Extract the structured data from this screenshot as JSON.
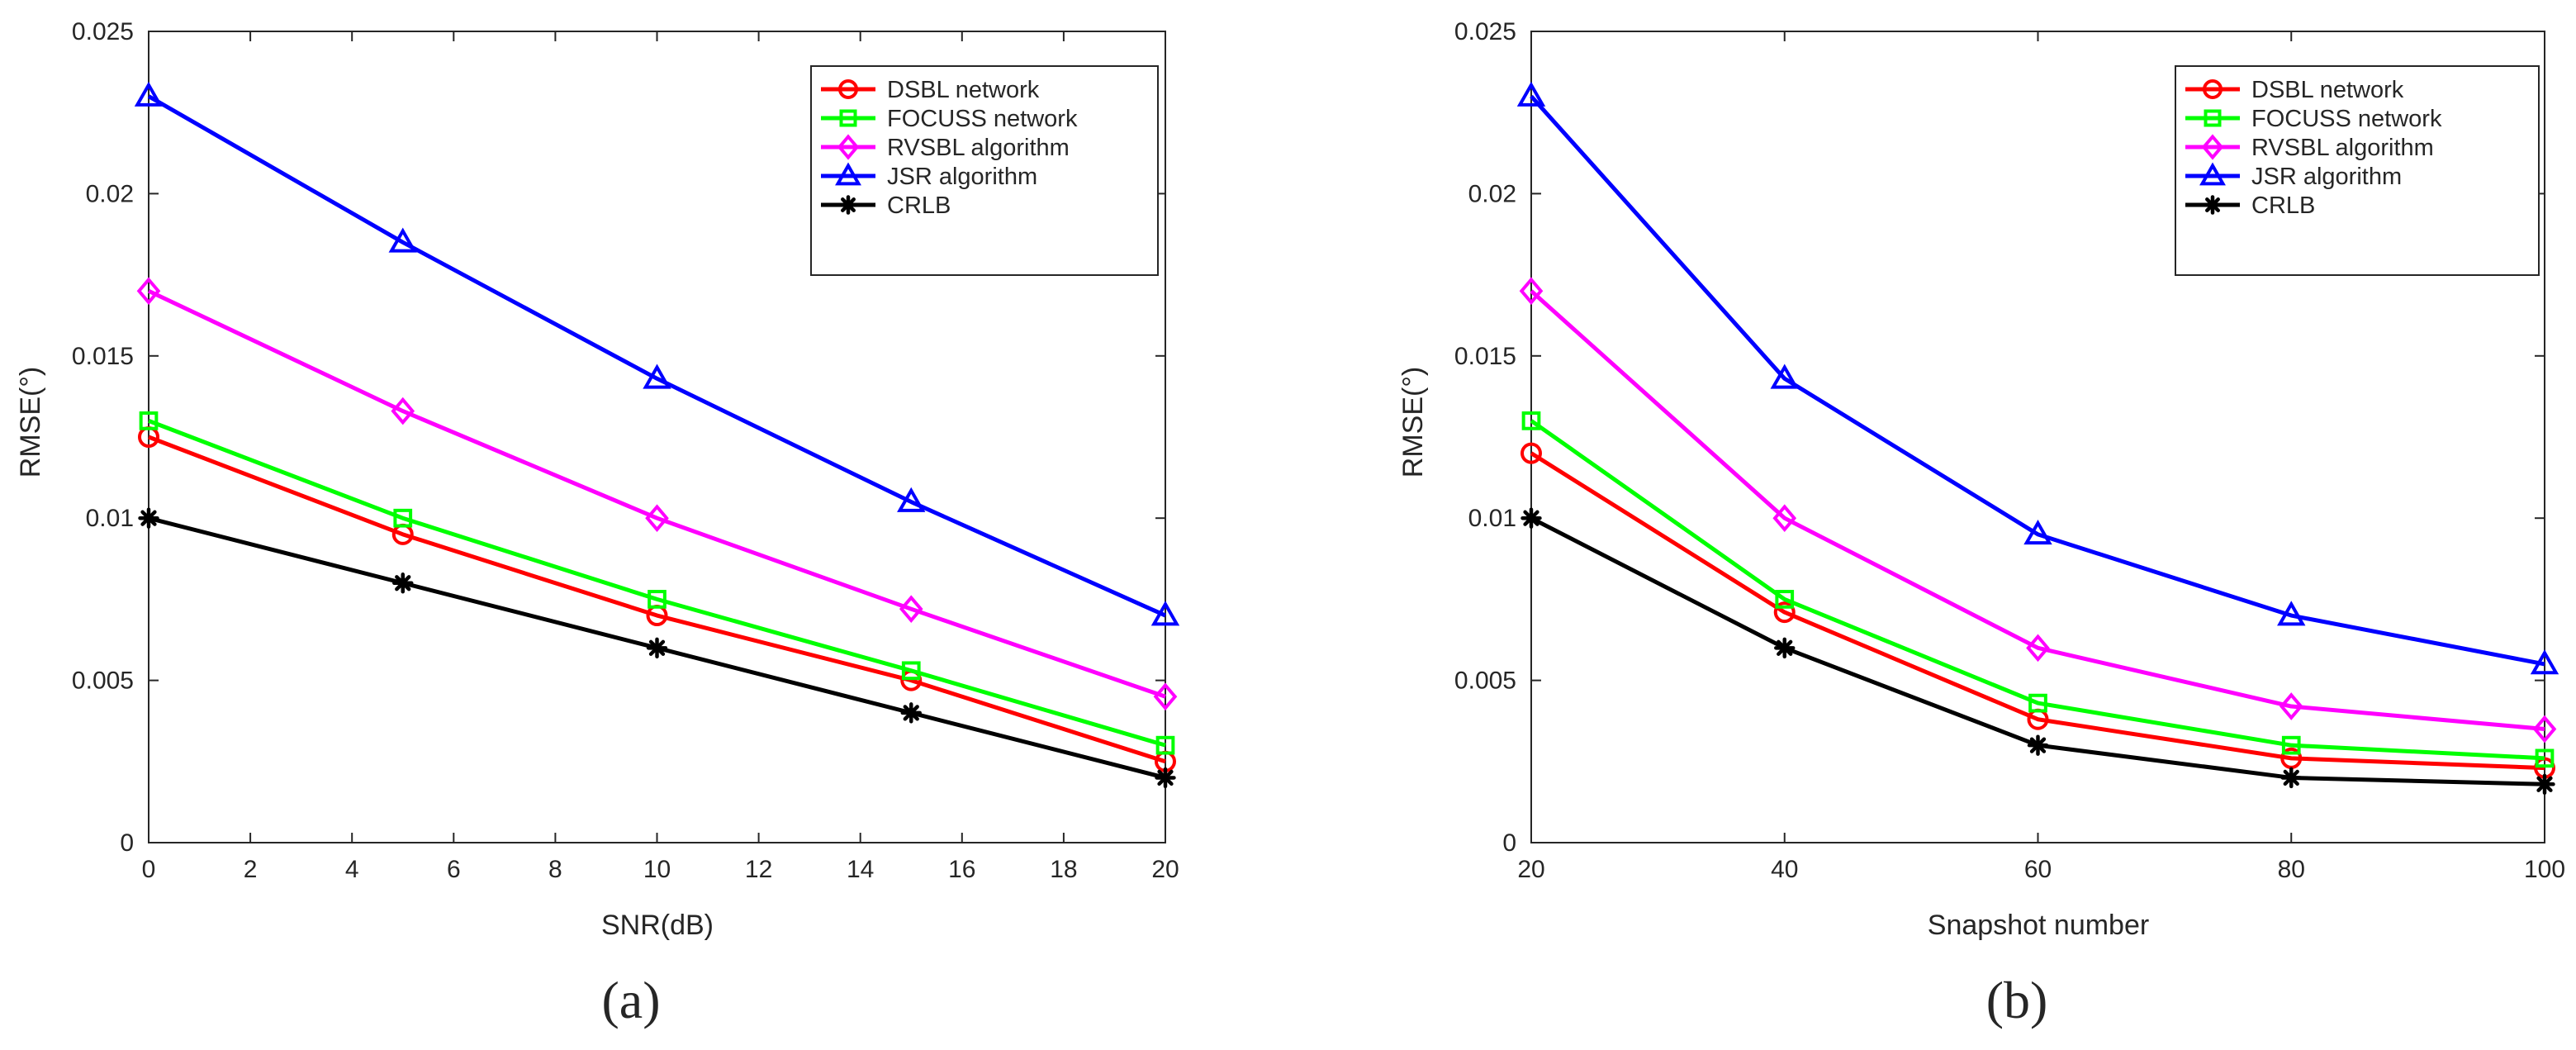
{
  "chart_data": [
    {
      "type": "line",
      "panel_label": "(a)",
      "xlabel": "SNR(dB)",
      "ylabel": "RMSE(°)",
      "x": [
        0,
        5,
        10,
        15,
        20
      ],
      "xlim": [
        0,
        20
      ],
      "ylim": [
        0,
        0.025
      ],
      "xticks": [
        0,
        2,
        4,
        6,
        8,
        10,
        12,
        14,
        16,
        18,
        20
      ],
      "xtick_labels": [
        "0",
        "2",
        "4",
        "6",
        "8",
        "10",
        "12",
        "14",
        "16",
        "18",
        "20"
      ],
      "yticks": [
        0,
        0.005,
        0.01,
        0.015,
        0.02,
        0.025
      ],
      "ytick_labels": [
        "0",
        "0.005",
        "0.01",
        "0.015",
        "0.02",
        "0.025"
      ],
      "grid": false,
      "legend_position": "top-right",
      "series": [
        {
          "name": "DSBL network",
          "color": "#ff0000",
          "marker": "circle",
          "values": [
            0.0125,
            0.0095,
            0.007,
            0.005,
            0.0025
          ]
        },
        {
          "name": "FOCUSS network",
          "color": "#00ff00",
          "marker": "square",
          "values": [
            0.013,
            0.01,
            0.0075,
            0.0053,
            0.003
          ]
        },
        {
          "name": "RVSBL algorithm",
          "color": "#ff00ff",
          "marker": "diamond",
          "values": [
            0.017,
            0.0133,
            0.01,
            0.0072,
            0.0045
          ]
        },
        {
          "name": "JSR algorithm",
          "color": "#0000ff",
          "marker": "triangle",
          "values": [
            0.023,
            0.0185,
            0.0143,
            0.0105,
            0.007
          ]
        },
        {
          "name": "CRLB",
          "color": "#000000",
          "marker": "asterisk",
          "values": [
            0.01,
            0.008,
            0.006,
            0.004,
            0.002
          ]
        }
      ]
    },
    {
      "type": "line",
      "panel_label": "(b)",
      "xlabel": "Snapshot number",
      "ylabel": "RMSE(°)",
      "x": [
        20,
        40,
        60,
        80,
        100
      ],
      "xlim": [
        20,
        100
      ],
      "ylim": [
        0,
        0.025
      ],
      "xticks": [
        20,
        40,
        60,
        80,
        100
      ],
      "xtick_labels": [
        "20",
        "40",
        "60",
        "80",
        "100"
      ],
      "yticks": [
        0,
        0.005,
        0.01,
        0.015,
        0.02,
        0.025
      ],
      "ytick_labels": [
        "0",
        "0.005",
        "0.01",
        "0.015",
        "0.02",
        "0.025"
      ],
      "grid": false,
      "legend_position": "top-right",
      "series": [
        {
          "name": "DSBL network",
          "color": "#ff0000",
          "marker": "circle",
          "values": [
            0.012,
            0.0071,
            0.0038,
            0.0026,
            0.0023
          ]
        },
        {
          "name": "FOCUSS network",
          "color": "#00ff00",
          "marker": "square",
          "values": [
            0.013,
            0.0075,
            0.0043,
            0.003,
            0.0026
          ]
        },
        {
          "name": "RVSBL algorithm",
          "color": "#ff00ff",
          "marker": "diamond",
          "values": [
            0.017,
            0.01,
            0.006,
            0.0042,
            0.0035
          ]
        },
        {
          "name": "JSR algorithm",
          "color": "#0000ff",
          "marker": "triangle",
          "values": [
            0.023,
            0.0143,
            0.0095,
            0.007,
            0.0055
          ]
        },
        {
          "name": "CRLB",
          "color": "#000000",
          "marker": "asterisk",
          "values": [
            0.01,
            0.006,
            0.003,
            0.002,
            0.0018
          ]
        }
      ]
    }
  ]
}
